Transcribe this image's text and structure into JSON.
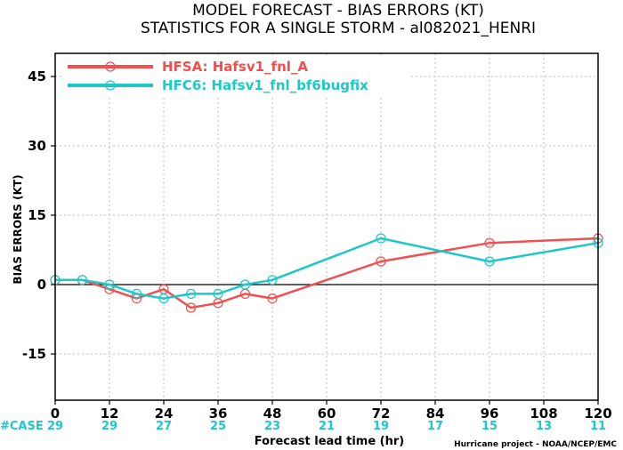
{
  "title_line1": "MODEL FORECAST - BIAS ERRORS (KT)",
  "title_line2": "STATISTICS FOR A SINGLE STORM - al082021_HENRI",
  "credit": "Hurricane project - NOAA/NCEP/EMC",
  "case_label": "#CASE",
  "case_counts": [
    "29",
    "29",
    "27",
    "25",
    "23",
    "21",
    "19",
    "17",
    "15",
    "13",
    "11"
  ],
  "colors": {
    "hfsa": "#f05050",
    "hfc6": "#1ec8c8",
    "zero_line": "#000000",
    "grid": "#bbbbbb"
  },
  "chart_data": {
    "type": "line",
    "xlabel": "Forecast lead time (hr)",
    "ylabel": "BIAS ERRORS (KT)",
    "xlim": [
      0,
      120
    ],
    "ylim": [
      -25,
      50
    ],
    "xticks": [
      0,
      12,
      24,
      36,
      48,
      60,
      72,
      84,
      96,
      108,
      120
    ],
    "yticks": [
      45,
      30,
      15,
      0,
      -15
    ],
    "grid": true,
    "legend_position": "top-left",
    "series": [
      {
        "name": "HFSA: Hafsv1_fnl_A",
        "color": "#f05050",
        "x": [
          0,
          6,
          12,
          18,
          24,
          30,
          36,
          42,
          48,
          72,
          96,
          120
        ],
        "y": [
          1,
          1,
          -1,
          -3,
          -1,
          -5,
          -4,
          -2,
          -3,
          5,
          9,
          10
        ]
      },
      {
        "name": "HFC6: Hafsv1_fnl_bf6bugfix",
        "color": "#1ec8c8",
        "x": [
          0,
          6,
          12,
          18,
          24,
          30,
          36,
          42,
          48,
          72,
          96,
          120
        ],
        "y": [
          1,
          1,
          0,
          -2,
          -3,
          -2,
          -2,
          0,
          1,
          10,
          5,
          9
        ]
      }
    ]
  }
}
